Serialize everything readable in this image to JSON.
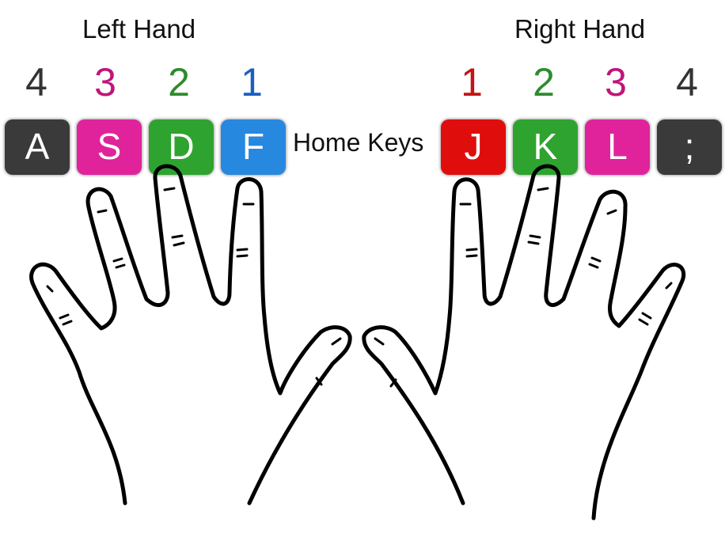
{
  "left_hand": {
    "title": "Left Hand",
    "fingers": [
      {
        "number": "4",
        "key": "A",
        "number_color": "#333333",
        "key_color": "#3a3a3a"
      },
      {
        "number": "3",
        "key": "S",
        "number_color": "#c0147a",
        "key_color": "#e0239b"
      },
      {
        "number": "2",
        "key": "D",
        "number_color": "#2e8b2e",
        "key_color": "#2fa32f"
      },
      {
        "number": "1",
        "key": "F",
        "number_color": "#1a5fc2",
        "key_color": "#2788e0"
      }
    ]
  },
  "home_keys_label": "Home Keys",
  "right_hand": {
    "title": "Right Hand",
    "fingers": [
      {
        "number": "1",
        "key": "J",
        "number_color": "#c41414",
        "key_color": "#e00d0d"
      },
      {
        "number": "2",
        "key": "K",
        "number_color": "#2e8b2e",
        "key_color": "#2fa32f"
      },
      {
        "number": "3",
        "key": "L",
        "number_color": "#c0147a",
        "key_color": "#e0239b"
      },
      {
        "number": "4",
        "key": ";",
        "number_color": "#333333",
        "key_color": "#3a3a3a"
      }
    ]
  }
}
